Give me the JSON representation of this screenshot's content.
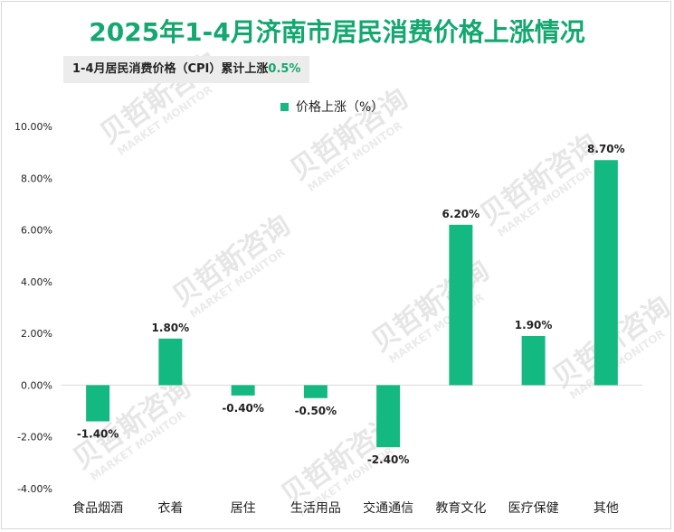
{
  "title": "2025年1-4月济南市居民消费价格上涨情况",
  "subtitle": {
    "text": "1-4月居民消费价格（CPI）累计上涨",
    "highlight": "0.5%"
  },
  "watermark": {
    "cn": "贝哲斯咨询",
    "en": "MARKET MONITOR"
  },
  "colors": {
    "accent": "#13a870",
    "bar": "#13b980",
    "axis": "#d9d9d9"
  },
  "chart_data": {
    "type": "bar",
    "categories": [
      "食品烟酒",
      "衣着",
      "居住",
      "生活用品",
      "交通通信",
      "教育文化",
      "医疗保健",
      "其他"
    ],
    "series": [
      {
        "name": "价格上涨（%）",
        "values": [
          -1.4,
          1.8,
          -0.4,
          -0.5,
          -2.4,
          6.2,
          1.9,
          8.7
        ]
      }
    ],
    "data_labels": [
      "-1.40%",
      "1.80%",
      "-0.40%",
      "-0.50%",
      "-2.40%",
      "6.20%",
      "1.90%",
      "8.70%"
    ],
    "y_ticks": [
      "10.00%",
      "8.00%",
      "6.00%",
      "4.00%",
      "2.00%",
      "0.00%",
      "-2.00%",
      "-4.00%"
    ],
    "ylim": [
      -4,
      10
    ],
    "grid": false,
    "legend_position": "top"
  }
}
